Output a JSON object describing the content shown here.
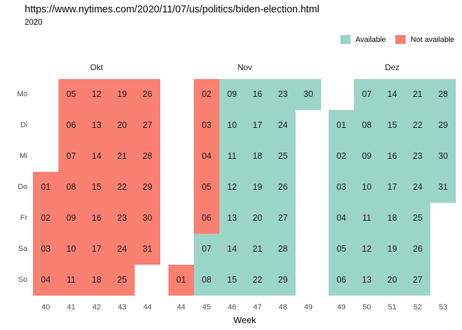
{
  "title": "https://www.nytimes.com/2020/11/07/us/politics/biden-election.html",
  "subtitle": "2020",
  "legend": {
    "items": [
      {
        "label": "Available",
        "status": "available"
      },
      {
        "label": "Not available",
        "status": "not_available"
      }
    ]
  },
  "colors": {
    "available": "#9BD5C7",
    "not_available": "#FA8072",
    "cell_text": "#1a1a1a",
    "axis_text": "#4d4d4d"
  },
  "axis": {
    "x_label": "Week",
    "day_labels": [
      "Mo",
      "Di",
      "Mi",
      "Do",
      "Fr",
      "Sa",
      "So"
    ]
  },
  "chart_data": {
    "type": "heatmap",
    "title": "https://www.nytimes.com/2020/11/07/us/politics/biden-election.html",
    "subtitle": "2020",
    "xlabel": "Week",
    "legend_entries": [
      "Available",
      "Not available"
    ],
    "legend_position": "top-right",
    "weekday_rows": [
      "Mo",
      "Di",
      "Mi",
      "Do",
      "Fr",
      "Sa",
      "So"
    ],
    "day_format": [
      "day_label",
      "week",
      "weekday",
      "available"
    ],
    "months": [
      {
        "name": "Okt",
        "weeks": [
          40,
          41,
          42,
          43,
          44
        ],
        "days": [
          [
            "01",
            40,
            "Do",
            0
          ],
          [
            "02",
            40,
            "Fr",
            0
          ],
          [
            "03",
            40,
            "Sa",
            0
          ],
          [
            "04",
            40,
            "So",
            0
          ],
          [
            "05",
            41,
            "Mo",
            0
          ],
          [
            "06",
            41,
            "Di",
            0
          ],
          [
            "07",
            41,
            "Mi",
            0
          ],
          [
            "08",
            41,
            "Do",
            0
          ],
          [
            "09",
            41,
            "Fr",
            0
          ],
          [
            "10",
            41,
            "Sa",
            0
          ],
          [
            "11",
            41,
            "So",
            0
          ],
          [
            "12",
            42,
            "Mo",
            0
          ],
          [
            "13",
            42,
            "Di",
            0
          ],
          [
            "14",
            42,
            "Mi",
            0
          ],
          [
            "15",
            42,
            "Do",
            0
          ],
          [
            "16",
            42,
            "Fr",
            0
          ],
          [
            "17",
            42,
            "Sa",
            0
          ],
          [
            "18",
            42,
            "So",
            0
          ],
          [
            "19",
            43,
            "Mo",
            0
          ],
          [
            "20",
            43,
            "Di",
            0
          ],
          [
            "21",
            43,
            "Mi",
            0
          ],
          [
            "22",
            43,
            "Do",
            0
          ],
          [
            "23",
            43,
            "Fr",
            0
          ],
          [
            "24",
            43,
            "Sa",
            0
          ],
          [
            "25",
            43,
            "So",
            0
          ],
          [
            "26",
            44,
            "Mo",
            0
          ],
          [
            "27",
            44,
            "Di",
            0
          ],
          [
            "28",
            44,
            "Mi",
            0
          ],
          [
            "29",
            44,
            "Do",
            0
          ],
          [
            "30",
            44,
            "Fr",
            0
          ],
          [
            "31",
            44,
            "Sa",
            0
          ]
        ]
      },
      {
        "name": "Nov",
        "weeks": [
          44,
          45,
          46,
          47,
          48,
          49
        ],
        "days": [
          [
            "01",
            44,
            "So",
            0
          ],
          [
            "02",
            45,
            "Mo",
            0
          ],
          [
            "03",
            45,
            "Di",
            0
          ],
          [
            "04",
            45,
            "Mi",
            0
          ],
          [
            "05",
            45,
            "Do",
            0
          ],
          [
            "06",
            45,
            "Fr",
            0
          ],
          [
            "07",
            45,
            "Sa",
            1
          ],
          [
            "08",
            45,
            "So",
            1
          ],
          [
            "09",
            46,
            "Mo",
            1
          ],
          [
            "10",
            46,
            "Di",
            1
          ],
          [
            "11",
            46,
            "Mi",
            1
          ],
          [
            "12",
            46,
            "Do",
            1
          ],
          [
            "13",
            46,
            "Fr",
            1
          ],
          [
            "14",
            46,
            "Sa",
            1
          ],
          [
            "15",
            46,
            "So",
            1
          ],
          [
            "16",
            47,
            "Mo",
            1
          ],
          [
            "17",
            47,
            "Di",
            1
          ],
          [
            "18",
            47,
            "Mi",
            1
          ],
          [
            "19",
            47,
            "Do",
            1
          ],
          [
            "20",
            47,
            "Fr",
            1
          ],
          [
            "21",
            47,
            "Sa",
            1
          ],
          [
            "22",
            47,
            "So",
            1
          ],
          [
            "23",
            48,
            "Mo",
            1
          ],
          [
            "24",
            48,
            "Di",
            1
          ],
          [
            "25",
            48,
            "Mi",
            1
          ],
          [
            "26",
            48,
            "Do",
            1
          ],
          [
            "27",
            48,
            "Fr",
            1
          ],
          [
            "28",
            48,
            "Sa",
            1
          ],
          [
            "29",
            48,
            "So",
            1
          ],
          [
            "30",
            49,
            "Mo",
            1
          ]
        ]
      },
      {
        "name": "Dez",
        "weeks": [
          49,
          50,
          51,
          52,
          53
        ],
        "days": [
          [
            "01",
            49,
            "Di",
            1
          ],
          [
            "02",
            49,
            "Mi",
            1
          ],
          [
            "03",
            49,
            "Do",
            1
          ],
          [
            "04",
            49,
            "Fr",
            1
          ],
          [
            "05",
            49,
            "Sa",
            1
          ],
          [
            "06",
            49,
            "So",
            1
          ],
          [
            "07",
            50,
            "Mo",
            1
          ],
          [
            "08",
            50,
            "Di",
            1
          ],
          [
            "09",
            50,
            "Mi",
            1
          ],
          [
            "10",
            50,
            "Do",
            1
          ],
          [
            "11",
            50,
            "Fr",
            1
          ],
          [
            "12",
            50,
            "Sa",
            1
          ],
          [
            "13",
            50,
            "So",
            1
          ],
          [
            "14",
            51,
            "Mo",
            1
          ],
          [
            "15",
            51,
            "Di",
            1
          ],
          [
            "16",
            51,
            "Mi",
            1
          ],
          [
            "17",
            51,
            "Do",
            1
          ],
          [
            "18",
            51,
            "Fr",
            1
          ],
          [
            "19",
            51,
            "Sa",
            1
          ],
          [
            "20",
            51,
            "So",
            1
          ],
          [
            "21",
            52,
            "Mo",
            1
          ],
          [
            "22",
            52,
            "Di",
            1
          ],
          [
            "23",
            52,
            "Mi",
            1
          ],
          [
            "24",
            52,
            "Do",
            1
          ],
          [
            "25",
            52,
            "Fr",
            1
          ],
          [
            "26",
            52,
            "Sa",
            1
          ],
          [
            "27",
            52,
            "So",
            1
          ],
          [
            "28",
            53,
            "Mo",
            1
          ],
          [
            "29",
            53,
            "Di",
            1
          ],
          [
            "30",
            53,
            "Mi",
            1
          ],
          [
            "31",
            53,
            "Do",
            1
          ]
        ]
      }
    ]
  }
}
